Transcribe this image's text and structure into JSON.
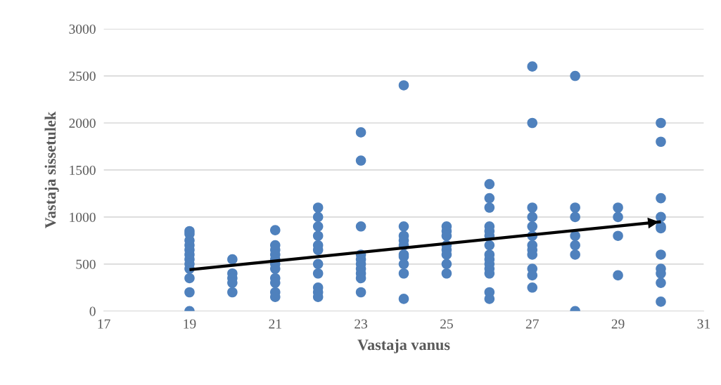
{
  "chart_data": {
    "type": "scatter",
    "xlabel": "Vastaja vanus",
    "ylabel": "Vastaja sissetulek",
    "xlim": [
      17,
      31
    ],
    "xticks": [
      17,
      19,
      21,
      23,
      25,
      27,
      29,
      31
    ],
    "ylim": [
      0,
      3000
    ],
    "yticks": [
      0,
      500,
      1000,
      1500,
      2000,
      2500,
      3000
    ],
    "grid": "y",
    "series": [
      {
        "marker": "circle",
        "color": "#4f81bd",
        "x": [
          19,
          19,
          19,
          19,
          19,
          19,
          19,
          19,
          19,
          19,
          19,
          19,
          20,
          20,
          20,
          20,
          20,
          21,
          21,
          21,
          21,
          21,
          21,
          21,
          21,
          21,
          21,
          21,
          22,
          22,
          22,
          22,
          22,
          22,
          22,
          22,
          22,
          22,
          22,
          23,
          23,
          23,
          23,
          23,
          23,
          23,
          23,
          23,
          23,
          24,
          24,
          24,
          24,
          24,
          24,
          24,
          24,
          24,
          24,
          25,
          25,
          25,
          25,
          25,
          25,
          25,
          25,
          26,
          26,
          26,
          26,
          26,
          26,
          26,
          26,
          26,
          26,
          26,
          26,
          26,
          26,
          27,
          27,
          27,
          27,
          27,
          27,
          27,
          27,
          27,
          27,
          27,
          27,
          28,
          28,
          28,
          28,
          28,
          28,
          28,
          29,
          29,
          29,
          29,
          30,
          30,
          30,
          30,
          30,
          30,
          30,
          30,
          30,
          30,
          30
        ],
        "values": [
          850,
          820,
          750,
          700,
          650,
          600,
          550,
          500,
          450,
          350,
          200,
          0,
          550,
          400,
          350,
          300,
          200,
          860,
          700,
          650,
          600,
          550,
          500,
          450,
          350,
          300,
          200,
          150,
          1100,
          1000,
          900,
          800,
          700,
          650,
          500,
          400,
          250,
          200,
          150,
          1900,
          1600,
          900,
          600,
          550,
          500,
          450,
          400,
          350,
          200,
          2400,
          900,
          800,
          750,
          700,
          600,
          580,
          500,
          400,
          130,
          900,
          850,
          800,
          700,
          650,
          600,
          500,
          400,
          1350,
          1200,
          1100,
          900,
          850,
          800,
          700,
          600,
          550,
          500,
          450,
          400,
          200,
          130,
          2600,
          2000,
          1100,
          1000,
          900,
          800,
          700,
          650,
          600,
          450,
          380,
          250,
          2500,
          1100,
          1000,
          800,
          700,
          600,
          0,
          1100,
          1000,
          800,
          380,
          2000,
          1800,
          1200,
          1000,
          900,
          880,
          600,
          450,
          400,
          300,
          100
        ]
      },
      {
        "type": "line",
        "color": "#000000",
        "x": [
          19,
          30
        ],
        "values": [
          440,
          950
        ]
      }
    ]
  }
}
